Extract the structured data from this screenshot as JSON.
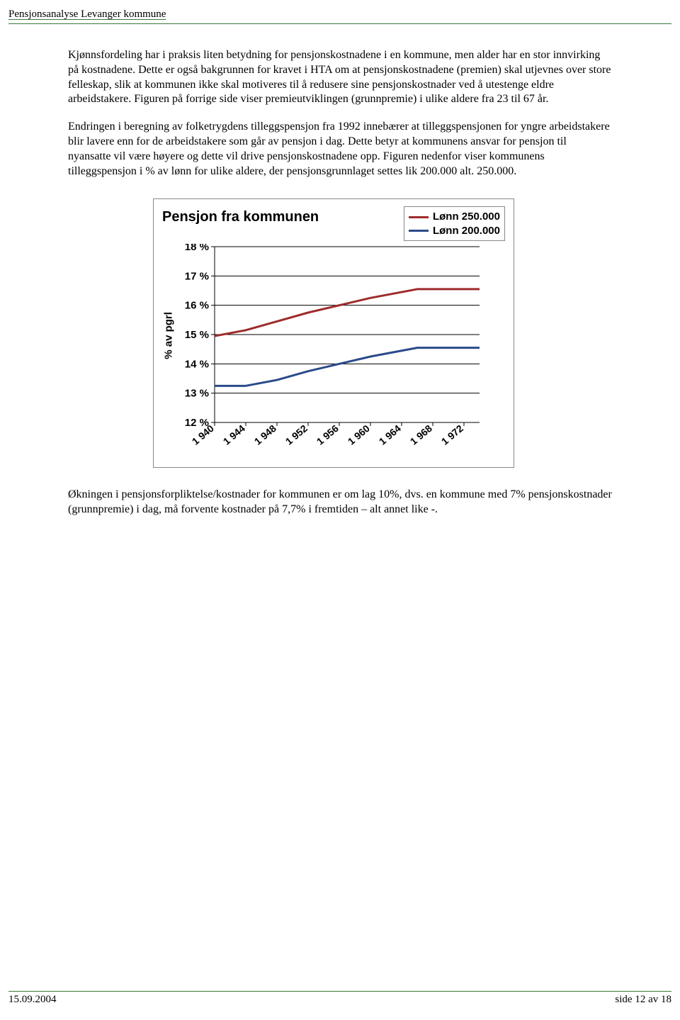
{
  "header": "Pensjonsanalyse Levanger kommune",
  "paragraphs": {
    "p1": "Kjønnsfordeling har i praksis liten betydning for pensjonskostnadene i en kommune, men alder har en stor innvirking på kostnadene. Dette er også bakgrunnen for kravet i HTA om at pensjonskostnadene (premien) skal utjevnes over store felleskap, slik at kommunen ikke skal motiveres til å redusere sine pensjonskostnader ved å utestenge eldre arbeidstakere. Figuren på forrige side viser premieutviklingen (grunnpremie) i ulike aldere fra 23 til 67 år.",
    "p2": "Endringen i beregning av folketrygdens tilleggspensjon fra 1992 innebærer at tilleggspensjonen for yngre arbeidstakere blir lavere enn for de arbeidstakere som går av pensjon i dag. Dette betyr at kommunens ansvar for pensjon til nyansatte vil være høyere og dette vil drive pensjonskostnadene opp. Figuren nedenfor viser kommunens tilleggspensjon i % av lønn for ulike aldere, der pensjonsgrunnlaget settes lik 200.000 alt. 250.000.",
    "p3": "Økningen i pensjonsforpliktelse/kostnader for kommunen er om lag 10%, dvs. en kommune med 7% pensjonskostnader (grunnpremie) i dag, må forvente kostnader på 7,7% i fremtiden – alt annet like -."
  },
  "chart": {
    "title": "Pensjon fra kommunen",
    "y_label": "% av pgrl",
    "y_ticks": [
      "18 %",
      "17 %",
      "16 %",
      "15 %",
      "14 %",
      "13 %",
      "12 %"
    ],
    "x_ticks": [
      "1 940",
      "1 944",
      "1 948",
      "1 952",
      "1 956",
      "1 960",
      "1 964",
      "1 968",
      "1 972"
    ],
    "ylim": [
      12,
      18
    ],
    "xlim": [
      1940,
      1974
    ],
    "series": [
      {
        "name": "Lønn 250.000",
        "color": "#9e2b2b",
        "values": [
          [
            1940,
            14.95
          ],
          [
            1944,
            15.15
          ],
          [
            1948,
            15.45
          ],
          [
            1952,
            15.75
          ],
          [
            1956,
            16.0
          ],
          [
            1960,
            16.25
          ],
          [
            1964,
            16.45
          ],
          [
            1966,
            16.55
          ],
          [
            1968,
            16.55
          ],
          [
            1972,
            16.55
          ],
          [
            1974,
            16.55
          ]
        ]
      },
      {
        "name": "Lønn 200.000",
        "color": "#2a4a8a",
        "values": [
          [
            1940,
            13.25
          ],
          [
            1944,
            13.25
          ],
          [
            1948,
            13.45
          ],
          [
            1952,
            13.75
          ],
          [
            1956,
            14.0
          ],
          [
            1960,
            14.25
          ],
          [
            1964,
            14.45
          ],
          [
            1966,
            14.55
          ],
          [
            1968,
            14.55
          ],
          [
            1972,
            14.55
          ],
          [
            1974,
            14.55
          ]
        ]
      }
    ],
    "legend": [
      {
        "label": "Lønn 250.000",
        "color": "#9e2b2b"
      },
      {
        "label": "Lønn 200.000",
        "color": "#2a4a8a"
      }
    ],
    "grid_color": "#000000",
    "plot_border_color": "#888888",
    "background": "#ffffff",
    "line_width": 3,
    "title_fontsize": 20,
    "tick_fontsize": 15
  },
  "footer": {
    "left": "15.09.2004",
    "right": "side 12 av 18"
  }
}
